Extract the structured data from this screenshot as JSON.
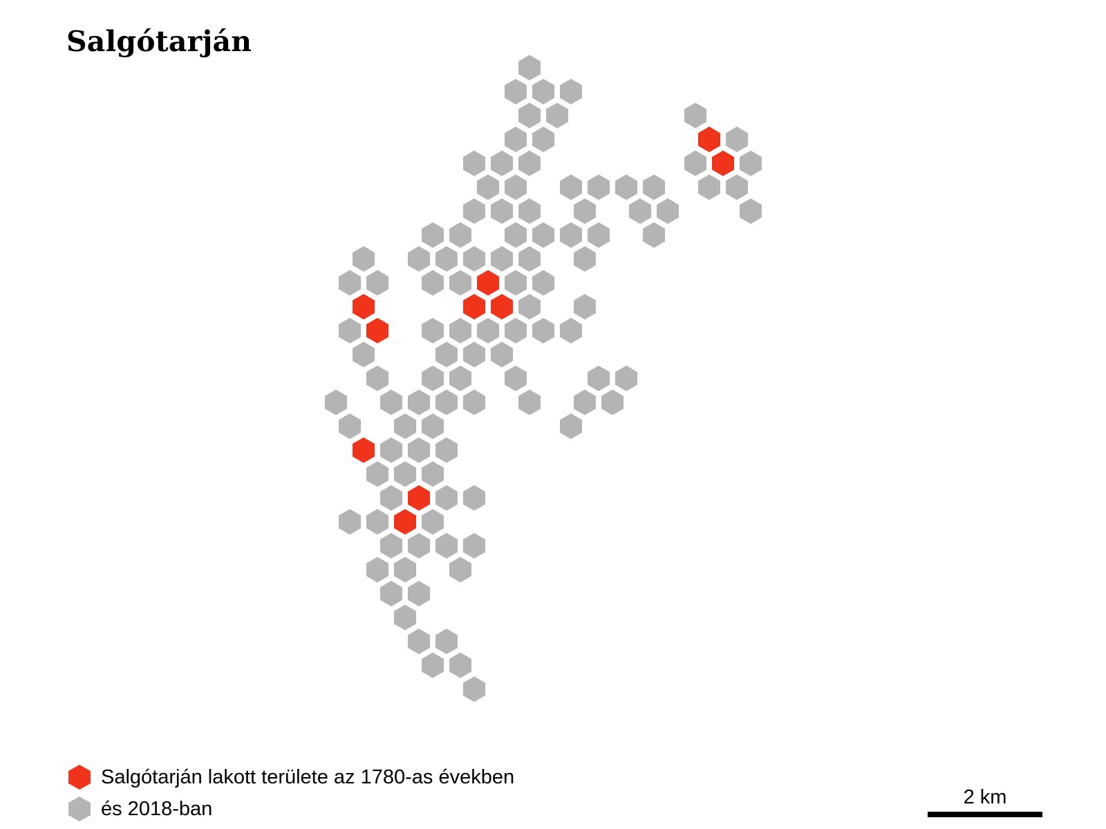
{
  "title": "Salgótarján",
  "colors": {
    "historic": "#f0341c",
    "current": "#b4b4b4"
  },
  "map": {
    "grid": "pointy-top hex grid, odd rows offset right",
    "cells": [
      [
        0,
        7,
        "c"
      ],
      [
        1,
        6,
        "c"
      ],
      [
        1,
        7,
        "c"
      ],
      [
        1,
        8,
        "c"
      ],
      [
        2,
        7,
        "c"
      ],
      [
        2,
        8,
        "c"
      ],
      [
        2,
        13,
        "c"
      ],
      [
        3,
        6,
        "c"
      ],
      [
        3,
        7,
        "c"
      ],
      [
        3,
        13,
        "h"
      ],
      [
        3,
        14,
        "c"
      ],
      [
        4,
        5,
        "c"
      ],
      [
        4,
        6,
        "c"
      ],
      [
        4,
        7,
        "c"
      ],
      [
        4,
        13,
        "c"
      ],
      [
        4,
        14,
        "h"
      ],
      [
        4,
        15,
        "c"
      ],
      [
        5,
        5,
        "c"
      ],
      [
        5,
        6,
        "c"
      ],
      [
        5,
        8,
        "c"
      ],
      [
        5,
        9,
        "c"
      ],
      [
        5,
        10,
        "c"
      ],
      [
        5,
        11,
        "c"
      ],
      [
        5,
        13,
        "c"
      ],
      [
        5,
        14,
        "c"
      ],
      [
        6,
        5,
        "c"
      ],
      [
        6,
        6,
        "c"
      ],
      [
        6,
        7,
        "c"
      ],
      [
        6,
        9,
        "c"
      ],
      [
        6,
        11,
        "c"
      ],
      [
        6,
        12,
        "c"
      ],
      [
        6,
        15,
        "c"
      ],
      [
        7,
        3,
        "c"
      ],
      [
        7,
        4,
        "c"
      ],
      [
        7,
        6,
        "c"
      ],
      [
        7,
        7,
        "c"
      ],
      [
        7,
        8,
        "c"
      ],
      [
        7,
        9,
        "c"
      ],
      [
        7,
        11,
        "c"
      ],
      [
        8,
        1,
        "c"
      ],
      [
        8,
        3,
        "c"
      ],
      [
        8,
        4,
        "c"
      ],
      [
        8,
        5,
        "c"
      ],
      [
        8,
        6,
        "c"
      ],
      [
        8,
        7,
        "c"
      ],
      [
        8,
        9,
        "c"
      ],
      [
        9,
        0,
        "c"
      ],
      [
        9,
        1,
        "c"
      ],
      [
        9,
        3,
        "c"
      ],
      [
        9,
        4,
        "c"
      ],
      [
        9,
        5,
        "h"
      ],
      [
        9,
        6,
        "c"
      ],
      [
        9,
        7,
        "c"
      ],
      [
        10,
        1,
        "h"
      ],
      [
        10,
        5,
        "h"
      ],
      [
        10,
        6,
        "h"
      ],
      [
        10,
        7,
        "c"
      ],
      [
        10,
        9,
        "c"
      ],
      [
        11,
        0,
        "c"
      ],
      [
        11,
        1,
        "h"
      ],
      [
        11,
        3,
        "c"
      ],
      [
        11,
        4,
        "c"
      ],
      [
        11,
        5,
        "c"
      ],
      [
        11,
        6,
        "c"
      ],
      [
        11,
        7,
        "c"
      ],
      [
        11,
        8,
        "c"
      ],
      [
        12,
        1,
        "c"
      ],
      [
        12,
        4,
        "c"
      ],
      [
        12,
        5,
        "c"
      ],
      [
        12,
        6,
        "c"
      ],
      [
        13,
        1,
        "c"
      ],
      [
        13,
        3,
        "c"
      ],
      [
        13,
        4,
        "c"
      ],
      [
        13,
        6,
        "c"
      ],
      [
        13,
        9,
        "c"
      ],
      [
        13,
        10,
        "c"
      ],
      [
        14,
        0,
        "c"
      ],
      [
        14,
        2,
        "c"
      ],
      [
        14,
        3,
        "c"
      ],
      [
        14,
        4,
        "c"
      ],
      [
        14,
        5,
        "c"
      ],
      [
        14,
        7,
        "c"
      ],
      [
        14,
        9,
        "c"
      ],
      [
        14,
        10,
        "c"
      ],
      [
        15,
        0,
        "c"
      ],
      [
        15,
        2,
        "c"
      ],
      [
        15,
        3,
        "c"
      ],
      [
        15,
        8,
        "c"
      ],
      [
        16,
        1,
        "h"
      ],
      [
        16,
        2,
        "c"
      ],
      [
        16,
        3,
        "c"
      ],
      [
        16,
        4,
        "c"
      ],
      [
        17,
        1,
        "c"
      ],
      [
        17,
        2,
        "c"
      ],
      [
        17,
        3,
        "c"
      ],
      [
        18,
        2,
        "c"
      ],
      [
        18,
        3,
        "h"
      ],
      [
        18,
        4,
        "c"
      ],
      [
        18,
        5,
        "c"
      ],
      [
        19,
        0,
        "c"
      ],
      [
        19,
        1,
        "c"
      ],
      [
        19,
        2,
        "h"
      ],
      [
        19,
        3,
        "c"
      ],
      [
        20,
        2,
        "c"
      ],
      [
        20,
        3,
        "c"
      ],
      [
        20,
        4,
        "c"
      ],
      [
        20,
        5,
        "c"
      ],
      [
        21,
        1,
        "c"
      ],
      [
        21,
        2,
        "c"
      ],
      [
        21,
        4,
        "c"
      ],
      [
        22,
        2,
        "c"
      ],
      [
        22,
        3,
        "c"
      ],
      [
        23,
        2,
        "c"
      ],
      [
        24,
        3,
        "c"
      ],
      [
        24,
        4,
        "c"
      ],
      [
        25,
        3,
        "c"
      ],
      [
        25,
        4,
        "c"
      ],
      [
        26,
        5,
        "c"
      ]
    ]
  },
  "legend": [
    {
      "key": "historic",
      "label": "Salgótarján lakott területe az 1780-as években"
    },
    {
      "key": "current",
      "label": "és 2018-ban"
    }
  ],
  "scale": {
    "label": "2 km"
  }
}
